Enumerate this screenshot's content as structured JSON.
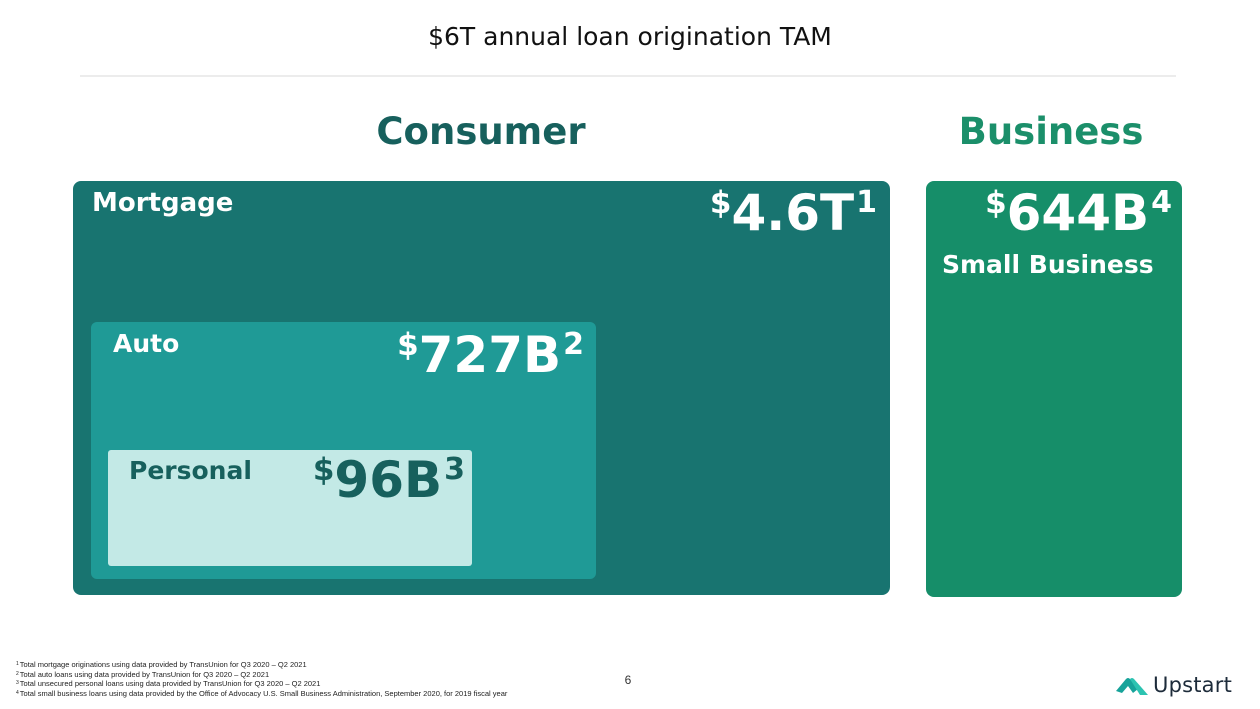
{
  "header": {
    "title": "$6T annual loan origination TAM"
  },
  "sections": {
    "consumer_heading": "Consumer",
    "business_heading": "Business"
  },
  "segments": {
    "mortgage": {
      "label": "Mortgage",
      "currency": "$",
      "amount": "4.6T",
      "note": "1"
    },
    "auto": {
      "label": "Auto",
      "currency": "$",
      "amount": "727B",
      "note": "2"
    },
    "personal": {
      "label": "Personal",
      "currency": "$",
      "amount": "96B",
      "note": "3"
    },
    "small_business": {
      "label": "Small Business",
      "currency": "$",
      "amount": "644B",
      "note": "4"
    }
  },
  "footnotes": [
    {
      "num": "1",
      "text": "Total mortgage originations using data provided by TransUnion for Q3 2020 – Q2 2021"
    },
    {
      "num": "2",
      "text": "Total auto loans using data provided by TransUnion for Q3 2020 – Q2 2021"
    },
    {
      "num": "3",
      "text": "Total unsecured personal loans using data provided by TransUnion for Q3 2020 – Q2 2021"
    },
    {
      "num": "4",
      "text": "Total small business loans using data provided by the Office of Advocacy U.S. Small Business Administration, September 2020, for 2019 fiscal year"
    }
  ],
  "page_number": "6",
  "brand": {
    "name": "Upstart",
    "icon": "upstart-logo-icon"
  },
  "colors": {
    "mortgage": "#187470",
    "auto": "#1f9a96",
    "personal": "#c3e9e6",
    "business": "#168e69",
    "consumer_heading": "#17605d",
    "business_heading": "#1b8f6a"
  }
}
